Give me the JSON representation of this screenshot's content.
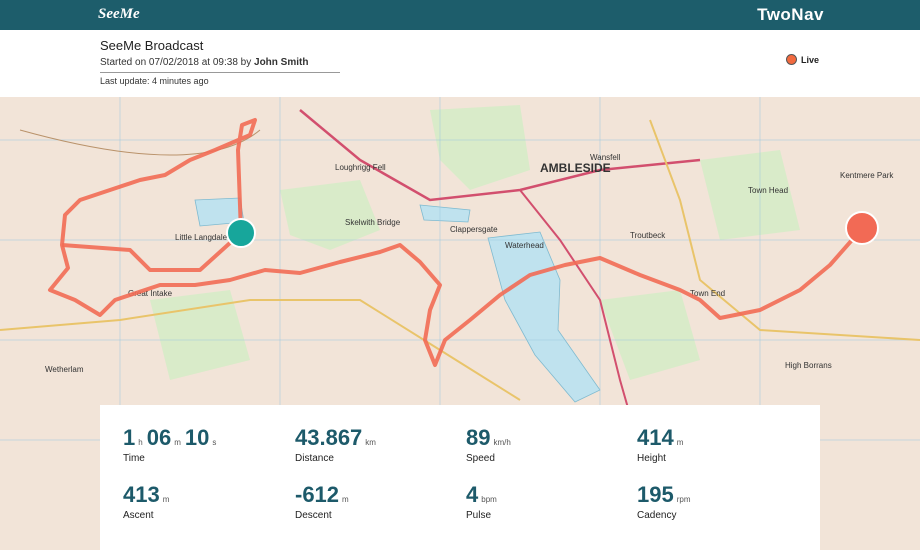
{
  "header": {
    "logo": "SeeMe",
    "brand": "TwoNav",
    "title": "SeeMe Broadcast",
    "started_prefix": "Started on 07/02/2018 at 09:38 by",
    "author": "John Smith",
    "last_update": "Last update: 4 minutes ago",
    "status": "Live"
  },
  "map": {
    "labels": [
      "AMBLESIDE",
      "Loughrigg Fell",
      "Clappersgate",
      "Skelwith Bridge",
      "Waterhead",
      "Wansfell",
      "Troutbeck",
      "Town End",
      "Kentmere Park",
      "Little Langdale",
      "Great Intake",
      "Wetherlam",
      "Town Head",
      "High Borrans"
    ]
  },
  "stats": [
    {
      "label": "Time",
      "parts": [
        {
          "value": "1",
          "unit": "h"
        },
        {
          "value": "06",
          "unit": "m"
        },
        {
          "value": "10",
          "unit": "s"
        }
      ]
    },
    {
      "label": "Distance",
      "parts": [
        {
          "value": "43.867",
          "unit": "km"
        }
      ]
    },
    {
      "label": "Speed",
      "parts": [
        {
          "value": "89",
          "unit": "km/h"
        }
      ]
    },
    {
      "label": "Height",
      "parts": [
        {
          "value": "414",
          "unit": "m"
        }
      ]
    },
    {
      "label": "Ascent",
      "parts": [
        {
          "value": "413",
          "unit": "m"
        }
      ]
    },
    {
      "label": "Descent",
      "parts": [
        {
          "value": "-612",
          "unit": "m"
        }
      ]
    },
    {
      "label": "Pulse",
      "parts": [
        {
          "value": "4",
          "unit": "bpm"
        }
      ]
    },
    {
      "label": "Cadency",
      "parts": [
        {
          "value": "195",
          "unit": "rpm"
        }
      ]
    }
  ]
}
